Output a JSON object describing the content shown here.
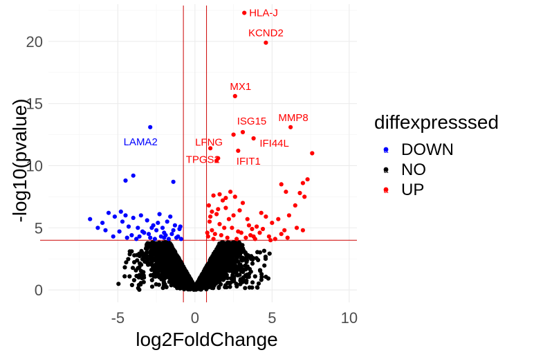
{
  "chart_data": {
    "type": "scatter",
    "title": "",
    "xlabel": "log2FoldChange",
    "ylabel": "-log10(pvalue)",
    "xlim": [
      -9.5,
      10.5
    ],
    "ylim": [
      -1,
      23
    ],
    "xticks": [
      -5,
      0,
      5,
      10
    ],
    "yticks": [
      0,
      5,
      10,
      15,
      20
    ],
    "grid": true,
    "thresholds": {
      "vertical": [
        -0.75,
        0.75
      ],
      "horizontal": 4.0
    },
    "legend": {
      "title": "diffexpresssed",
      "position": "right",
      "entries": [
        {
          "label": "DOWN",
          "color": "#0000ff"
        },
        {
          "label": "NO",
          "color": "#000000"
        },
        {
          "label": "UP",
          "color": "#ff0000"
        }
      ]
    },
    "series": [
      {
        "name": "DOWN",
        "color": "#0000ff",
        "points": [
          [
            -2.9,
            13.1
          ],
          [
            -4.0,
            9.2
          ],
          [
            -4.5,
            8.8
          ],
          [
            -1.4,
            8.7
          ],
          [
            -6.8,
            5.7
          ],
          [
            -6.0,
            5.4
          ],
          [
            -5.6,
            6.2
          ],
          [
            -5.2,
            5.9
          ],
          [
            -4.8,
            6.3
          ],
          [
            -4.7,
            5.5
          ],
          [
            -4.5,
            6.0
          ],
          [
            -4.3,
            5.1
          ],
          [
            -4.0,
            5.8
          ],
          [
            -3.7,
            5.0
          ],
          [
            -3.5,
            6.0
          ],
          [
            -3.3,
            4.6
          ],
          [
            -3.1,
            5.6
          ],
          [
            -2.9,
            4.2
          ],
          [
            -2.7,
            5.2
          ],
          [
            -2.5,
            4.8
          ],
          [
            -2.3,
            6.1
          ],
          [
            -2.1,
            5.0
          ],
          [
            -1.9,
            4.4
          ],
          [
            -1.8,
            5.5
          ],
          [
            -1.6,
            5.9
          ],
          [
            -1.4,
            4.8
          ],
          [
            -1.3,
            5.2
          ],
          [
            -1.1,
            4.3
          ],
          [
            -1.0,
            4.9
          ],
          [
            -0.9,
            4.1
          ],
          [
            -5.3,
            4.3
          ],
          [
            -4.9,
            4.7
          ],
          [
            -4.1,
            4.4
          ],
          [
            -3.8,
            4.1
          ],
          [
            -3.4,
            4.7
          ],
          [
            -2.8,
            5.0
          ],
          [
            -2.2,
            4.3
          ],
          [
            -2.0,
            4.6
          ],
          [
            -1.7,
            4.1
          ],
          [
            -1.2,
            4.2
          ],
          [
            -6.3,
            5.0
          ],
          [
            -5.8,
            4.8
          ],
          [
            -4.4,
            4.2
          ],
          [
            -3.6,
            4.3
          ],
          [
            -2.6,
            4.1
          ],
          [
            -2.4,
            5.4
          ],
          [
            -1.5,
            4.5
          ],
          [
            -0.95,
            5.1
          ],
          [
            -3.0,
            4.5
          ],
          [
            -2.0,
            4.2
          ]
        ]
      },
      {
        "name": "UP",
        "color": "#ff0000",
        "points": [
          [
            3.2,
            22.3
          ],
          [
            4.6,
            19.9
          ],
          [
            2.6,
            15.6
          ],
          [
            6.2,
            13.1
          ],
          [
            3.1,
            12.7
          ],
          [
            2.5,
            12.5
          ],
          [
            3.8,
            12.2
          ],
          [
            1.0,
            11.4
          ],
          [
            2.8,
            11.2
          ],
          [
            7.6,
            11.0
          ],
          [
            1.5,
            10.6
          ],
          [
            1.4,
            10.4
          ],
          [
            7.3,
            8.9
          ],
          [
            7.0,
            8.6
          ],
          [
            5.6,
            8.5
          ],
          [
            5.9,
            7.9
          ],
          [
            6.8,
            7.8
          ],
          [
            7.1,
            7.5
          ],
          [
            6.5,
            6.8
          ],
          [
            6.1,
            6.0
          ],
          [
            5.4,
            5.7
          ],
          [
            5.0,
            5.4
          ],
          [
            4.6,
            5.9
          ],
          [
            4.3,
            6.2
          ],
          [
            4.0,
            5.1
          ],
          [
            3.7,
            4.9
          ],
          [
            3.4,
            5.7
          ],
          [
            2.9,
            6.4
          ],
          [
            2.6,
            7.5
          ],
          [
            2.3,
            7.9
          ],
          [
            2.0,
            6.6
          ],
          [
            1.8,
            7.2
          ],
          [
            1.6,
            5.3
          ],
          [
            1.4,
            6.1
          ],
          [
            1.2,
            7.6
          ],
          [
            1.1,
            4.8
          ],
          [
            0.95,
            5.5
          ],
          [
            0.9,
            6.8
          ],
          [
            0.85,
            4.3
          ],
          [
            1.3,
            4.5
          ],
          [
            1.7,
            4.4
          ],
          [
            2.1,
            4.2
          ],
          [
            2.4,
            5.0
          ],
          [
            2.7,
            4.1
          ],
          [
            3.0,
            4.6
          ],
          [
            3.3,
            4.2
          ],
          [
            3.6,
            4.4
          ],
          [
            3.9,
            4.1
          ],
          [
            4.2,
            4.6
          ],
          [
            4.8,
            4.3
          ],
          [
            5.2,
            4.1
          ],
          [
            5.6,
            4.5
          ],
          [
            6.0,
            4.2
          ],
          [
            7.0,
            4.8
          ],
          [
            1.0,
            5.9
          ],
          [
            1.5,
            6.5
          ],
          [
            2.2,
            5.7
          ],
          [
            2.5,
            6.0
          ],
          [
            3.1,
            7.0
          ],
          [
            3.5,
            5.2
          ],
          [
            1.9,
            5.0
          ],
          [
            1.2,
            4.1
          ],
          [
            0.8,
            4.6
          ],
          [
            2.8,
            4.7
          ],
          [
            4.4,
            4.9
          ],
          [
            6.6,
            5.0
          ],
          [
            1.6,
            7.7
          ],
          [
            2.0,
            7.4
          ],
          [
            1.1,
            6.3
          ],
          [
            3.8,
            4.3
          ],
          [
            5.8,
            4.8
          ],
          [
            4.9,
            4.0
          ]
        ]
      },
      {
        "name": "NO",
        "color": "#000000",
        "generated": true,
        "count": 2600
      }
    ],
    "annotations": [
      {
        "text": "HLA-J",
        "x": 3.2,
        "y": 22.3,
        "color": "#ff0000",
        "anchor": "start",
        "dx": 7,
        "dy": 5
      },
      {
        "text": "KCND2",
        "x": 4.6,
        "y": 19.9,
        "color": "#ff0000",
        "anchor": "middle",
        "dx": 0,
        "dy": -9
      },
      {
        "text": "MX1",
        "x": 2.6,
        "y": 15.6,
        "color": "#ff0000",
        "anchor": "middle",
        "dx": 8,
        "dy": -9
      },
      {
        "text": "MMP8",
        "x": 6.2,
        "y": 13.1,
        "color": "#ff0000",
        "anchor": "middle",
        "dx": 4,
        "dy": -9
      },
      {
        "text": "ISG15",
        "x": 3.1,
        "y": 12.7,
        "color": "#ff0000",
        "anchor": "middle",
        "dx": 13,
        "dy": -11
      },
      {
        "text": "LFNG",
        "x": 1.0,
        "y": 11.4,
        "color": "#ff0000",
        "anchor": "middle",
        "dx": -2,
        "dy": -4
      },
      {
        "text": "IFI44L",
        "x": 3.8,
        "y": 12.2,
        "color": "#ff0000",
        "anchor": "middle",
        "dx": 30,
        "dy": 12
      },
      {
        "text": "TPGS2",
        "x": 1.5,
        "y": 10.6,
        "color": "#ff0000",
        "anchor": "middle",
        "dx": -22,
        "dy": 7
      },
      {
        "text": "IFIT1",
        "x": 2.8,
        "y": 11.2,
        "color": "#ff0000",
        "anchor": "middle",
        "dx": 15,
        "dy": 20
      },
      {
        "text": "LAMA2",
        "x": -2.9,
        "y": 13.1,
        "color": "#0000ff",
        "anchor": "middle",
        "dx": -14,
        "dy": 26
      }
    ]
  }
}
